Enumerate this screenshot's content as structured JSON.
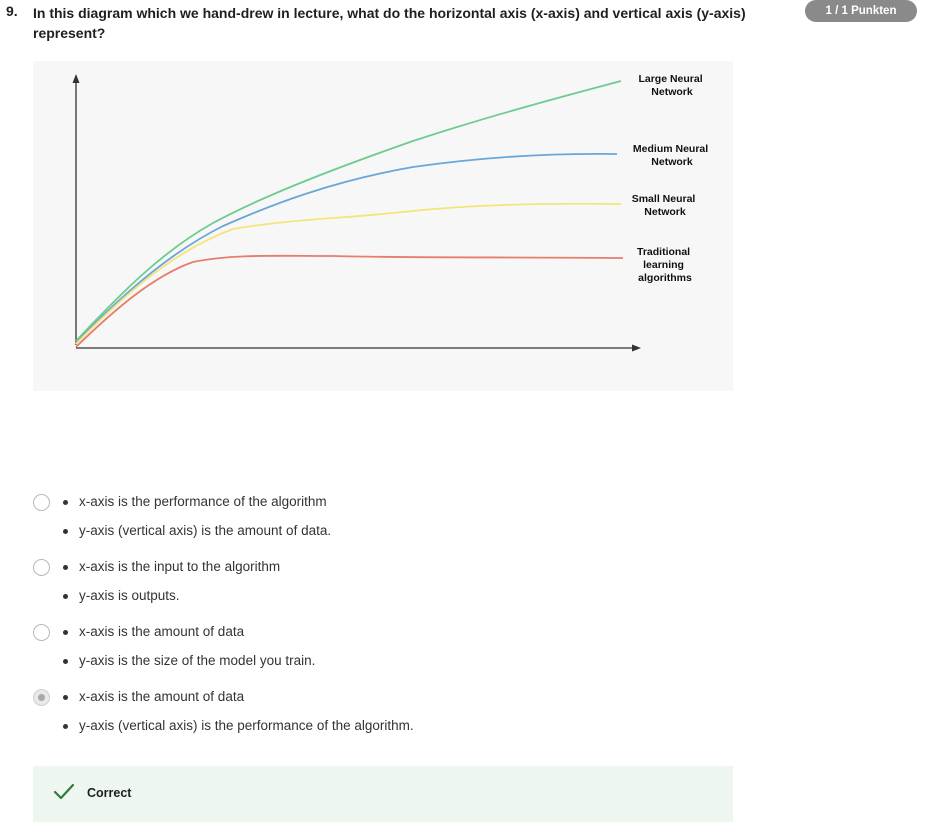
{
  "question": {
    "number": "9.",
    "text": "In this diagram which we hand-drew in lecture, what do the horizontal axis (x-axis) and vertical axis (y-axis) represent?",
    "score": "1 / 1 Punkten"
  },
  "figure": {
    "labels": {
      "large": [
        "Large Neural",
        "Network"
      ],
      "medium": [
        "Medium Neural",
        "Network"
      ],
      "small": [
        "Small Neural",
        "Network"
      ],
      "traditional": [
        "Traditional",
        "learning",
        "algorithms"
      ]
    },
    "colors": {
      "large": "#6ecb8f",
      "medium": "#6aa6d8",
      "small": "#f4e57a",
      "traditional": "#e67d6f",
      "axis": "#333333"
    }
  },
  "options": [
    {
      "lines": [
        "x-axis is the performance of the algorithm",
        "y-axis (vertical axis) is the amount of data."
      ],
      "selected": false
    },
    {
      "lines": [
        "x-axis is the input to the algorithm",
        "y-axis is outputs."
      ],
      "selected": false
    },
    {
      "lines": [
        "x-axis is the amount of data",
        "y-axis is the size of the model you train."
      ],
      "selected": false
    },
    {
      "lines": [
        "x-axis is the amount of data",
        "y-axis (vertical axis) is the performance of the algorithm."
      ],
      "selected": true
    }
  ],
  "feedback": {
    "label": "Correct",
    "color": "#2e7d32"
  }
}
